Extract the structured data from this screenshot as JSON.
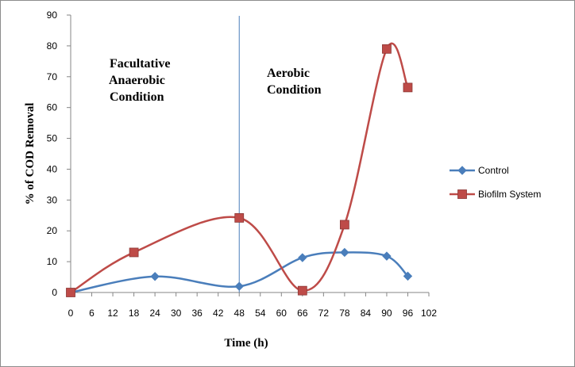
{
  "chart_data": {
    "type": "line",
    "title": "",
    "xlabel": "Time (h)",
    "ylabel": "% of COD Removal",
    "xlim": [
      0,
      102
    ],
    "ylim": [
      0,
      90
    ],
    "xticks": [
      0,
      6,
      12,
      18,
      24,
      30,
      36,
      42,
      48,
      54,
      60,
      66,
      72,
      78,
      84,
      90,
      96,
      102
    ],
    "yticks": [
      0,
      10,
      20,
      30,
      40,
      50,
      60,
      70,
      80,
      90
    ],
    "grid": false,
    "legend": "right",
    "smooth": true,
    "series": [
      {
        "name": "Control",
        "color": "#4a7ebb",
        "marker": "diamond",
        "x": [
          0,
          24,
          48,
          66,
          78,
          90,
          96
        ],
        "y": [
          0,
          5.2,
          2,
          11.3,
          13,
          11.8,
          5.3
        ]
      },
      {
        "name": "Biofilm System",
        "color": "#be4b48",
        "marker": "square",
        "x": [
          0,
          18,
          48,
          66,
          78,
          90,
          96
        ],
        "y": [
          0,
          13,
          24.2,
          0.6,
          22,
          79,
          66.5
        ]
      }
    ],
    "divider": {
      "x": 48,
      "color": "#4a7ebb"
    },
    "annotations": [
      {
        "lines": [
          "Facultative",
          "Anaerobic",
          "Condition"
        ]
      },
      {
        "lines": [
          "Aerobic",
          "Condition"
        ]
      }
    ]
  }
}
